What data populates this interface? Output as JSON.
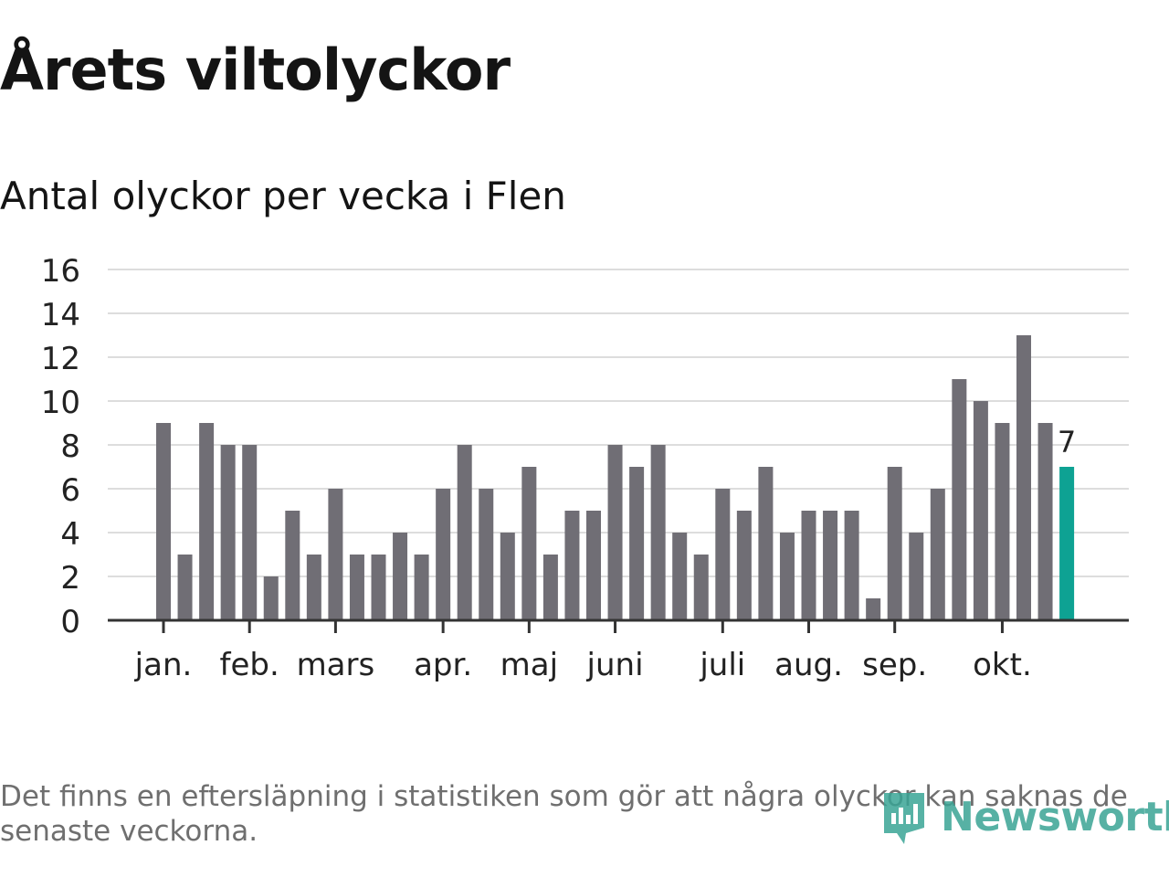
{
  "header": {
    "title": "Årets viltolyckor",
    "subtitle": "Antal olyckor per vecka i Flen"
  },
  "footer": {
    "note": "Det finns en eftersläpning i statistiken som gör att några olyckor kan saknas de senaste veckorna.",
    "logo_text": "Newsworthy"
  },
  "chart_data": {
    "type": "bar",
    "title": "Årets viltolyckor",
    "subtitle": "Antal olyckor per vecka i Flen",
    "ylim": [
      0,
      16
    ],
    "yticks": [
      0,
      2,
      4,
      6,
      8,
      10,
      12,
      14,
      16
    ],
    "grid": true,
    "values": [
      9,
      3,
      9,
      8,
      8,
      2,
      5,
      3,
      6,
      3,
      3,
      4,
      3,
      6,
      8,
      6,
      4,
      7,
      3,
      5,
      5,
      8,
      7,
      8,
      4,
      3,
      6,
      5,
      7,
      4,
      5,
      5,
      5,
      1,
      7,
      4,
      6,
      11,
      10,
      9,
      13,
      9,
      7
    ],
    "month_ticks": [
      {
        "label": "jan.",
        "week_index": 0
      },
      {
        "label": "feb.",
        "week_index": 4
      },
      {
        "label": "mars",
        "week_index": 8
      },
      {
        "label": "apr.",
        "week_index": 13
      },
      {
        "label": "maj",
        "week_index": 17
      },
      {
        "label": "juni",
        "week_index": 21
      },
      {
        "label": "juli",
        "week_index": 26
      },
      {
        "label": "aug.",
        "week_index": 30
      },
      {
        "label": "sep.",
        "week_index": 34
      },
      {
        "label": "okt.",
        "week_index": 39
      }
    ],
    "highlight": {
      "index": 42,
      "label": "7"
    },
    "colors": {
      "bar": "#706e75",
      "highlight": "#0ea293",
      "grid": "#dddddd",
      "axis": "#333333",
      "text": "#222222"
    }
  }
}
